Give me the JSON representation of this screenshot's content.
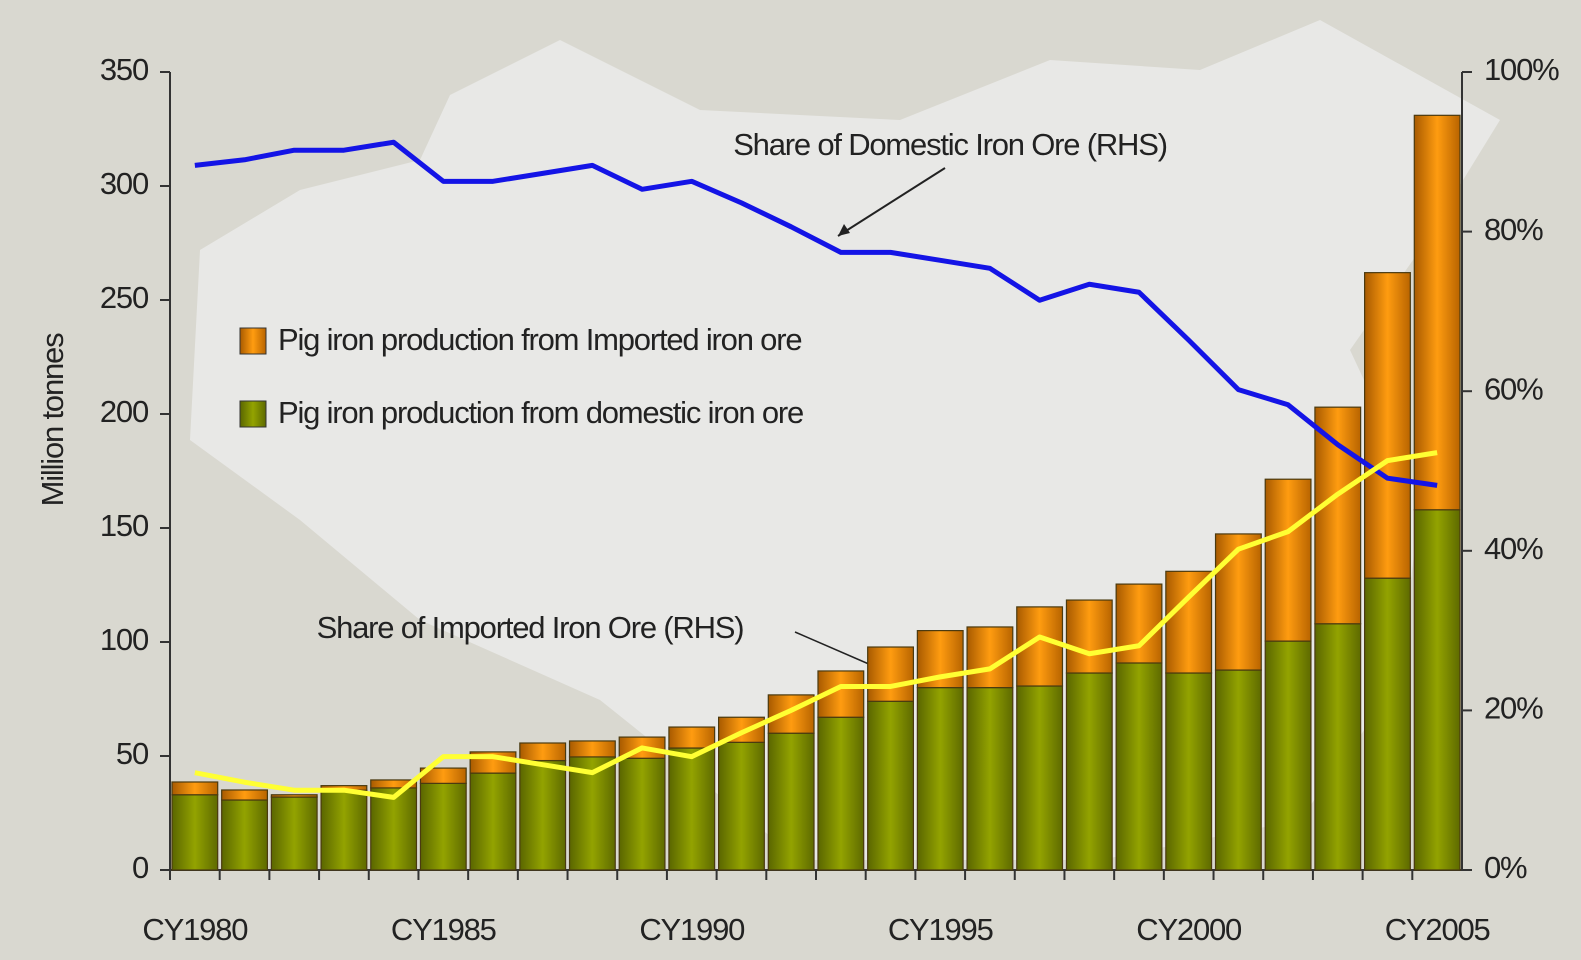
{
  "chart_data": {
    "type": "bar",
    "stacked": true,
    "y_label": "Million tonnes",
    "categories": [
      "CY1980",
      null,
      null,
      null,
      null,
      "CY1985",
      null,
      null,
      null,
      null,
      "CY1990",
      null,
      null,
      null,
      null,
      "CY1995",
      null,
      null,
      null,
      null,
      "CY2000",
      null,
      null,
      null,
      null,
      "CY2005"
    ],
    "series": [
      {
        "name": "Pig iron production from domestic iron ore",
        "color": "#8c9c00",
        "values": [
          33,
          30.7,
          32,
          35,
          36,
          38,
          42.5,
          48,
          49.6,
          49,
          53.5,
          56,
          60,
          67,
          74,
          80,
          80,
          80.7,
          86.4,
          90.8,
          86.4,
          87.7,
          100.4,
          108,
          128,
          158
        ]
      },
      {
        "name": "Pig iron production from Imported iron ore",
        "color": "#f39200",
        "values": [
          5.6,
          4.4,
          1,
          2,
          3.5,
          6.7,
          9.3,
          7.7,
          7,
          9.3,
          9.2,
          11,
          16.8,
          20.3,
          23.8,
          25,
          26.6,
          34.7,
          32,
          34.6,
          44.6,
          59.7,
          71,
          95,
          134,
          173
        ]
      },
      {
        "type": "line",
        "axis": "y2",
        "color": "#1414e6",
        "values": [
          88.3,
          89,
          90.2,
          90.2,
          91.2,
          86.3,
          86.3,
          87.3,
          88.3,
          85.3,
          86.3,
          83.6,
          80.6,
          77.4,
          77.4,
          76.4,
          75.4,
          71.4,
          73.4,
          72.4,
          66.4,
          60.2,
          58.3,
          53.3,
          49.1,
          48.2
        ]
      },
      {
        "type": "line",
        "axis": "y2",
        "color": "#ffff33",
        "values": [
          12.2,
          11,
          10,
          10,
          9.1,
          14.2,
          14.2,
          13.2,
          12.2,
          15.3,
          14.2,
          17.2,
          20,
          23,
          23,
          24.2,
          25.2,
          29.2,
          27.1,
          28.1,
          34.2,
          40.2,
          42.4,
          47.1,
          51.3,
          52.3
        ]
      }
    ],
    "annotations": [
      "Share of Domestic Iron Ore (RHS)",
      "Share of Imported Iron Ore (RHS)"
    ],
    "ylim": [
      0,
      350
    ],
    "yticks": [
      0,
      50,
      100,
      150,
      200,
      250,
      300,
      350
    ],
    "y2lim": [
      0,
      100
    ],
    "y2ticks": [
      {
        "value": 0,
        "label": "0%"
      },
      {
        "value": 20,
        "label": "20%"
      },
      {
        "value": 40,
        "label": "40%"
      },
      {
        "value": 60,
        "label": "60%"
      },
      {
        "value": 80,
        "label": "80%"
      },
      {
        "value": 100,
        "label": "100%"
      }
    ]
  }
}
